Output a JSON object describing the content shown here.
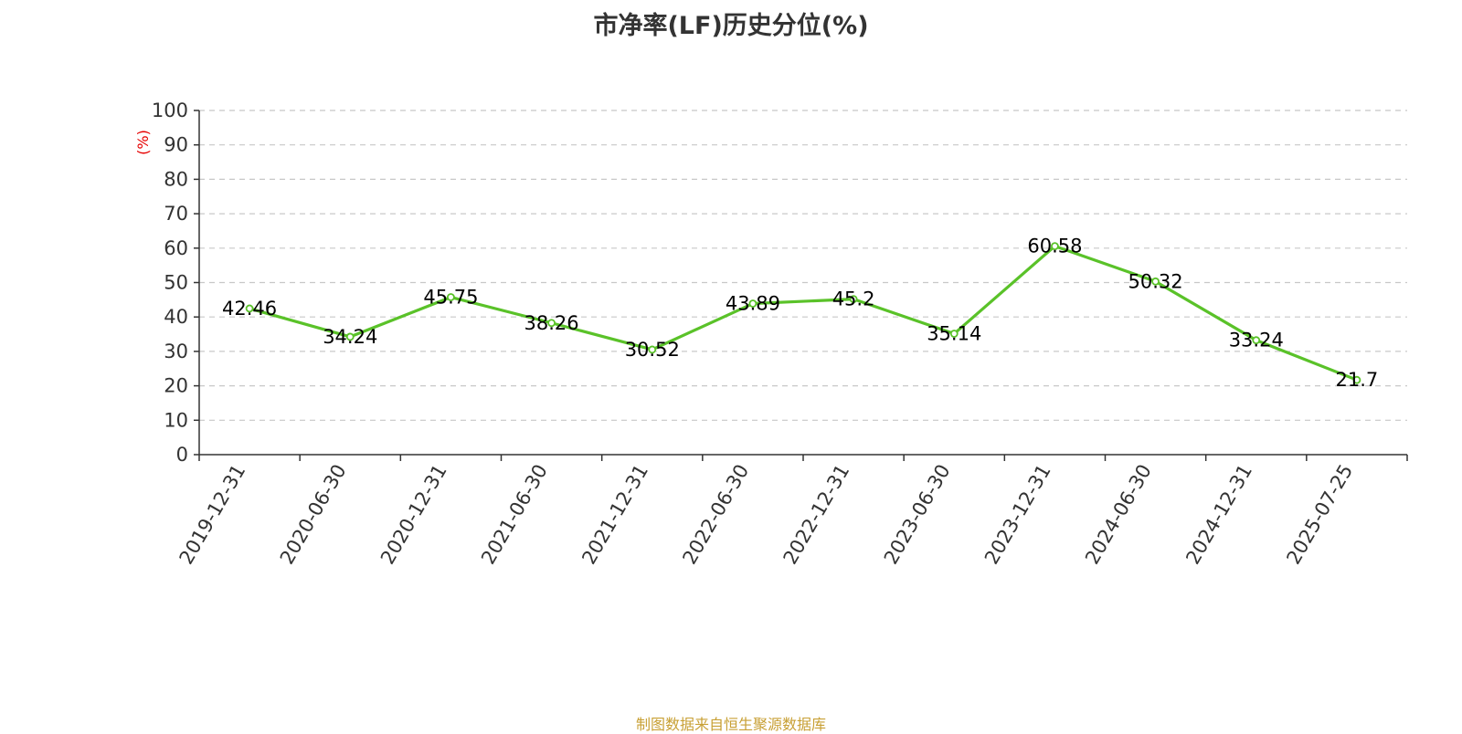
{
  "chart_data": {
    "type": "line",
    "title": "市净率(LF)历史分位(%)",
    "ylabel": "(%)",
    "xlabel": "",
    "ylim": [
      0,
      100
    ],
    "yticks": [
      0,
      10,
      20,
      30,
      40,
      50,
      60,
      70,
      80,
      90,
      100
    ],
    "grid": true,
    "categories": [
      "2019-12-31",
      "2020-06-30",
      "2020-12-31",
      "2021-06-30",
      "2021-12-31",
      "2022-06-30",
      "2022-12-31",
      "2023-06-30",
      "2023-12-31",
      "2024-06-30",
      "2024-12-31",
      "2025-07-25"
    ],
    "series": [
      {
        "values": [
          42.46,
          34.24,
          45.75,
          38.26,
          30.52,
          43.89,
          45.2,
          35.14,
          60.58,
          50.32,
          33.24,
          21.7
        ],
        "labels": [
          "42.46",
          "34.24",
          "45.75",
          "38.26",
          "30.52",
          "43.89",
          "45.2",
          "35.14",
          "60.58",
          "50.32",
          "33.24",
          "21.7"
        ],
        "color": "#5ac229"
      }
    ],
    "source": "制图数据来自恒生聚源数据库"
  },
  "colors": {
    "ylabel": "#e60000",
    "source": "#c8a035",
    "grid": "#c8c8c8",
    "axis": "#333333"
  }
}
